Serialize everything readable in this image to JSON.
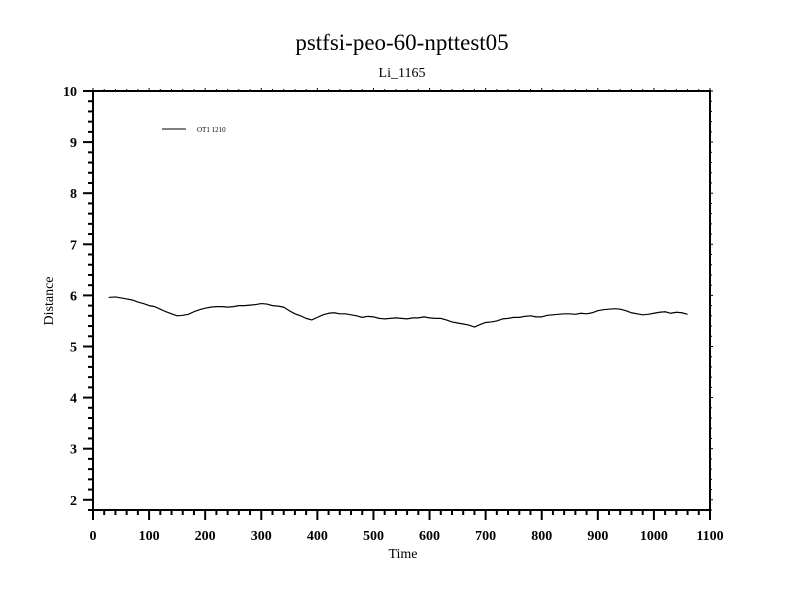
{
  "chart_data": {
    "type": "line",
    "title": "pstfsi-peo-60-npttest05",
    "subtitle": "Li_1165",
    "xlabel": "Time",
    "ylabel": "Distance",
    "xlim": [
      0,
      1100
    ],
    "ylim": [
      1.8,
      10
    ],
    "xticks": [
      "0",
      "100",
      "200",
      "300",
      "400",
      "500",
      "600",
      "700",
      "800",
      "900",
      "1000",
      "1100"
    ],
    "yticks": [
      "2",
      "3",
      "4",
      "5",
      "6",
      "7",
      "8",
      "9",
      "10"
    ],
    "legend_position": "top-left",
    "grid": false,
    "series": [
      {
        "name": "OT1 1210",
        "color": "#000000",
        "x": [
          28,
          40,
          50,
          60,
          70,
          80,
          90,
          100,
          110,
          120,
          130,
          140,
          150,
          160,
          170,
          180,
          190,
          200,
          210,
          220,
          230,
          240,
          250,
          260,
          270,
          280,
          290,
          300,
          310,
          320,
          330,
          340,
          350,
          360,
          370,
          380,
          390,
          400,
          410,
          420,
          430,
          440,
          450,
          460,
          470,
          480,
          490,
          500,
          510,
          520,
          530,
          540,
          550,
          560,
          570,
          580,
          590,
          600,
          610,
          620,
          630,
          640,
          650,
          660,
          670,
          680,
          690,
          700,
          710,
          720,
          730,
          740,
          750,
          760,
          770,
          780,
          790,
          800,
          810,
          820,
          830,
          840,
          850,
          860,
          870,
          880,
          890,
          900,
          910,
          920,
          930,
          940,
          950,
          960,
          970,
          980,
          990,
          1000,
          1010,
          1020,
          1030,
          1040,
          1050,
          1060
        ],
        "y": [
          5.96,
          5.97,
          5.95,
          5.93,
          5.91,
          5.87,
          5.84,
          5.8,
          5.78,
          5.73,
          5.68,
          5.64,
          5.6,
          5.61,
          5.63,
          5.68,
          5.72,
          5.75,
          5.77,
          5.78,
          5.78,
          5.77,
          5.78,
          5.8,
          5.8,
          5.81,
          5.82,
          5.84,
          5.83,
          5.8,
          5.79,
          5.77,
          5.7,
          5.64,
          5.6,
          5.55,
          5.52,
          5.57,
          5.62,
          5.65,
          5.66,
          5.64,
          5.64,
          5.62,
          5.6,
          5.57,
          5.59,
          5.58,
          5.55,
          5.54,
          5.55,
          5.56,
          5.55,
          5.54,
          5.56,
          5.56,
          5.58,
          5.56,
          5.55,
          5.55,
          5.52,
          5.48,
          5.46,
          5.44,
          5.42,
          5.38,
          5.43,
          5.47,
          5.48,
          5.5,
          5.54,
          5.55,
          5.57,
          5.57,
          5.59,
          5.6,
          5.58,
          5.58,
          5.61,
          5.62,
          5.63,
          5.64,
          5.64,
          5.63,
          5.65,
          5.64,
          5.66,
          5.7,
          5.72,
          5.73,
          5.74,
          5.73,
          5.7,
          5.66,
          5.64,
          5.62,
          5.63,
          5.65,
          5.67,
          5.68,
          5.65,
          5.67,
          5.66,
          5.63
        ]
      }
    ]
  }
}
